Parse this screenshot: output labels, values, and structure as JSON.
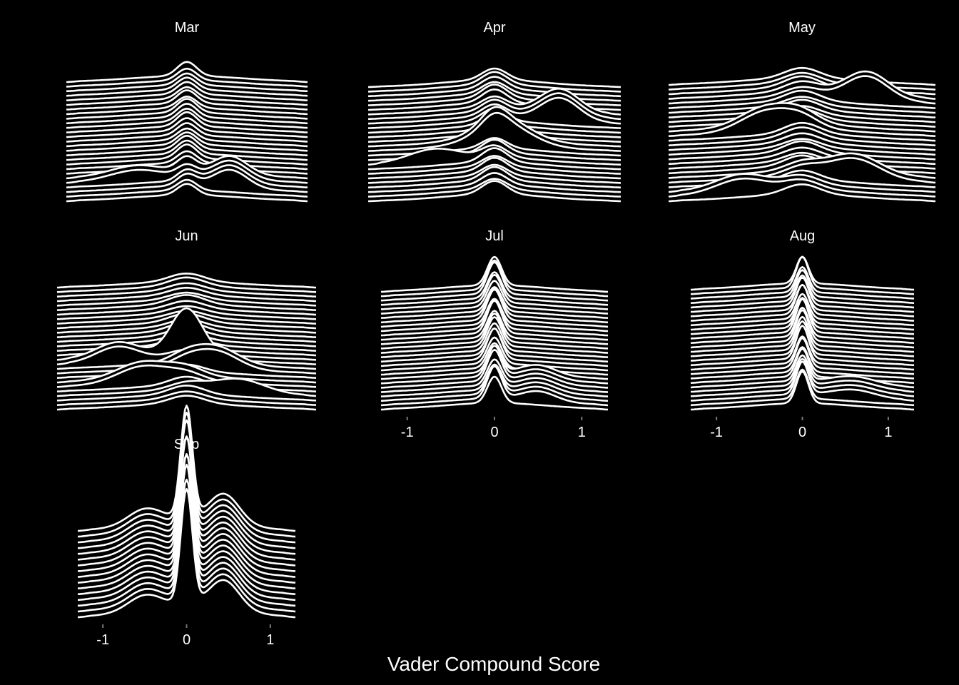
{
  "chart_data": {
    "type": "ridgeline",
    "xlabel": "Vader Compound Score",
    "x_ticks": [
      "-1",
      "0",
      "1"
    ],
    "tick_values": [
      -1,
      0,
      1
    ],
    "colors": {
      "background": "#000000",
      "line": "#ffffff",
      "fill": "#000000",
      "tick": "#777777"
    },
    "panels": [
      {
        "title": "Mar",
        "xlim": [
          -1.4,
          1.4
        ],
        "ridges": 27,
        "peak_center": 0.0,
        "peak_width": 0.11,
        "base_width": 0.65,
        "peak_weight": 0.7,
        "show_ticks": false,
        "features": [
          {
            "ridges": [
              3,
              4,
              5,
              6
            ],
            "center": 0.5,
            "width": 0.2,
            "weight": 1.0
          },
          {
            "ridges": [
              5,
              6
            ],
            "center": -0.6,
            "width": 0.3,
            "weight": 0.5
          }
        ]
      },
      {
        "title": "Apr",
        "xlim": [
          -1.45,
          1.45
        ],
        "ridges": 26,
        "peak_center": 0.0,
        "peak_width": 0.14,
        "base_width": 0.6,
        "peak_weight": 0.6,
        "show_ticks": false,
        "features": [
          {
            "ridges": [
              18,
              19,
              20
            ],
            "center": 0.75,
            "width": 0.22,
            "weight": 1.1
          },
          {
            "ridges": [
              12,
              13
            ],
            "center": 0.1,
            "width": 0.3,
            "weight": 1.0
          },
          {
            "ridges": [
              9
            ],
            "center": -0.7,
            "width": 0.3,
            "weight": 0.6
          }
        ]
      },
      {
        "title": "May",
        "xlim": [
          -1.55,
          1.55
        ],
        "ridges": 26,
        "peak_center": 0.0,
        "peak_width": 0.2,
        "base_width": 0.7,
        "peak_weight": 0.5,
        "show_ticks": false,
        "features": [
          {
            "ridges": [
              22,
              23
            ],
            "center": 0.75,
            "width": 0.25,
            "weight": 1.2
          },
          {
            "ridges": [
              15,
              16
            ],
            "center": -0.4,
            "width": 0.3,
            "weight": 1.0
          },
          {
            "ridges": [
              5,
              6
            ],
            "center": 0.6,
            "width": 0.3,
            "weight": 1.0
          },
          {
            "ridges": [
              2,
              3
            ],
            "center": -0.7,
            "width": 0.3,
            "weight": 0.7
          }
        ]
      },
      {
        "title": "Jun",
        "xlim": [
          -1.5,
          1.5
        ],
        "ridges": 28,
        "peak_center": 0.0,
        "peak_width": 0.2,
        "base_width": 0.7,
        "peak_weight": 0.5,
        "show_ticks": false,
        "features": [
          {
            "ridges": [
              12
            ],
            "center": 0.0,
            "width": 0.18,
            "weight": 2.2
          },
          {
            "ridges": [
              11,
              12
            ],
            "center": -0.8,
            "width": 0.25,
            "weight": 0.9
          },
          {
            "ridges": [
              9,
              10
            ],
            "center": 0.35,
            "width": 0.25,
            "weight": 1.0
          },
          {
            "ridges": [
              6,
              7
            ],
            "center": -0.5,
            "width": 0.3,
            "weight": 1.0
          },
          {
            "ridges": [
              4
            ],
            "center": 0.6,
            "width": 0.3,
            "weight": 0.8
          }
        ]
      },
      {
        "title": "Jul",
        "xlim": [
          -1.3,
          1.3
        ],
        "ridges": 28,
        "peak_center": 0.0,
        "peak_width": 0.08,
        "base_width": 0.6,
        "peak_weight": 1.5,
        "show_ticks": true,
        "features": [
          {
            "ridges": [
              2,
              3,
              4,
              5,
              6,
              7,
              8
            ],
            "center": 0.5,
            "width": 0.2,
            "weight": 0.5
          }
        ]
      },
      {
        "title": "Aug",
        "xlim": [
          -1.3,
          1.3
        ],
        "ridges": 28,
        "peak_center": 0.0,
        "peak_width": 0.07,
        "base_width": 0.6,
        "peak_weight": 1.6,
        "show_ticks": true,
        "features": [
          {
            "ridges": [
              3,
              4,
              5,
              6
            ],
            "center": 0.6,
            "width": 0.25,
            "weight": 0.4
          }
        ]
      },
      {
        "title": "Sep",
        "xlim": [
          -1.3,
          1.3
        ],
        "ridges": 16,
        "peak_center": 0.0,
        "peak_width": 0.07,
        "base_width": 0.55,
        "peak_weight": 3.0,
        "show_ticks": true,
        "features": [
          {
            "ridges": [
              1,
              2,
              3,
              4,
              5,
              6,
              7,
              8,
              9,
              10,
              11,
              12,
              13,
              14,
              15,
              16
            ],
            "center": 0.45,
            "width": 0.18,
            "weight": 0.8
          },
          {
            "ridges": [
              1,
              2,
              3,
              4,
              5,
              6,
              7,
              8,
              9,
              10,
              11,
              12,
              13,
              14,
              15,
              16
            ],
            "center": -0.5,
            "width": 0.2,
            "weight": 0.4
          }
        ]
      }
    ]
  }
}
